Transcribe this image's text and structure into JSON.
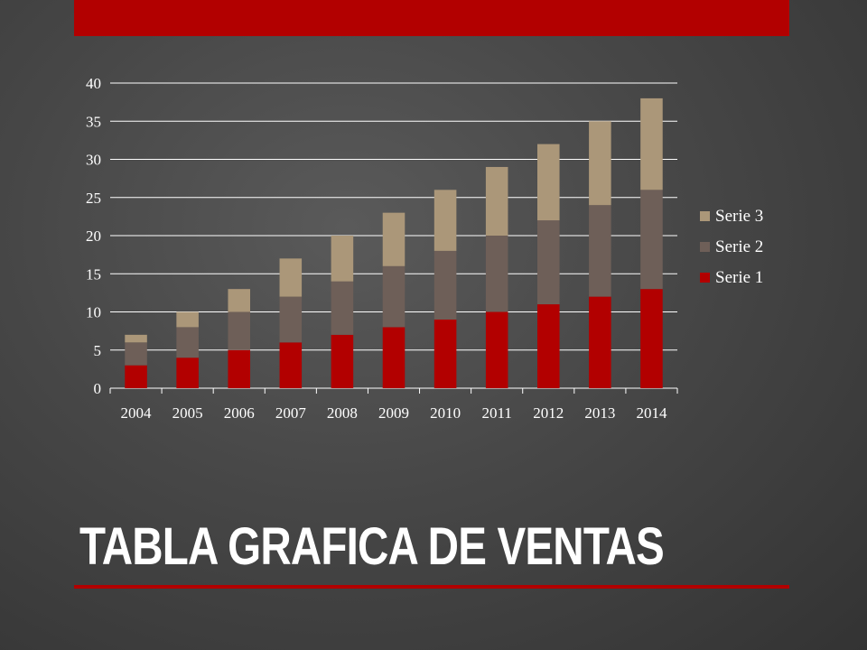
{
  "slide": {
    "title": "TABLA GRAFICA DE VENTAS"
  },
  "colors": {
    "accent": "#b20000",
    "serie1": "#b20000",
    "serie2": "#6e5f58",
    "serie3": "#ab9779",
    "gridline": "#ffffff",
    "text": "#ffffff"
  },
  "chart_data": {
    "type": "bar",
    "stacked": true,
    "categories": [
      "2004",
      "2005",
      "2006",
      "2007",
      "2008",
      "2009",
      "2010",
      "2011",
      "2012",
      "2013",
      "2014"
    ],
    "series": [
      {
        "name": "Serie 1",
        "values": [
          3,
          4,
          5,
          6,
          7,
          8,
          9,
          10,
          11,
          12,
          13
        ]
      },
      {
        "name": "Serie 2",
        "values": [
          3,
          4,
          5,
          6,
          7,
          8,
          9,
          10,
          11,
          12,
          13
        ]
      },
      {
        "name": "Serie 3",
        "values": [
          1,
          2,
          3,
          5,
          6,
          7,
          8,
          9,
          10,
          11,
          12
        ]
      }
    ],
    "ylim": [
      0,
      40
    ],
    "yticks": [
      0,
      5,
      10,
      15,
      20,
      25,
      30,
      35,
      40
    ],
    "grid": true,
    "legend": "right",
    "title": "",
    "xlabel": "",
    "ylabel": ""
  }
}
